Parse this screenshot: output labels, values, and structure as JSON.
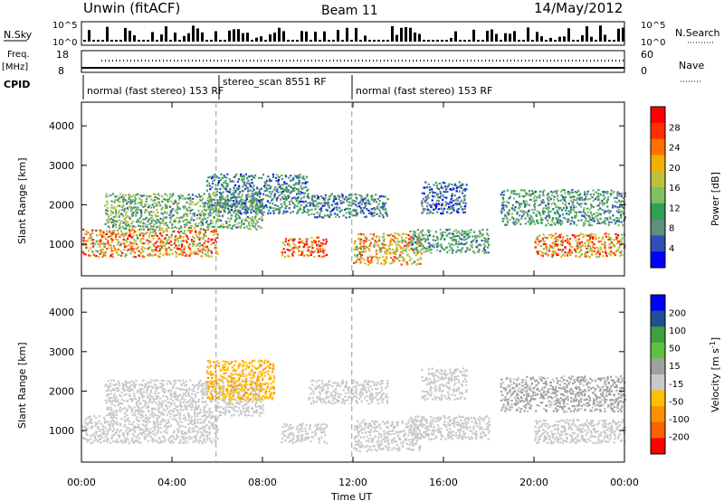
{
  "header": {
    "station": "Unwin (fitACF)",
    "beam": "Beam 11",
    "date": "14/May/2012"
  },
  "ops_panel": {
    "left_labels": {
      "nsky": "N.Sky",
      "freq": "Freq.",
      "mhz": "[MHz]",
      "cpid": "CPID"
    },
    "right_labels": {
      "nsearch": "N.Search",
      "nave": "Nave"
    },
    "noise_ticks_left": [
      "10^5",
      "10^0"
    ],
    "noise_ticks_right": [
      "10^5",
      "10^0"
    ],
    "freq_ticks_left": [
      "18",
      "8"
    ],
    "nave_ticks_right": [
      "60",
      "0"
    ],
    "cpid_segments": [
      {
        "label": "normal (fast stereo) 153 RF",
        "start_hour": 0,
        "end_hour": 5.95
      },
      {
        "label": "stereo_scan 8551 RF",
        "start_hour": 5.95,
        "end_hour": 11.95
      },
      {
        "label": "normal (fast stereo) 153 RF",
        "start_hour": 11.95,
        "end_hour": 24
      }
    ]
  },
  "colors": {
    "power_scale": [
      "#0000ff",
      "#2f4fb8",
      "#5f8f7f",
      "#2fa050",
      "#7fc060",
      "#c0c040",
      "#f0b000",
      "#ff7000",
      "#ff3000",
      "#ff0000"
    ],
    "velocity_scale": [
      "#ff0000",
      "#ff6000",
      "#ff9000",
      "#ffc000",
      "#c8c8c8",
      "#a0a0a0",
      "#60c040",
      "#40a040",
      "#205090",
      "#0000ff"
    ],
    "scatter_gray": "#c8c8c8"
  },
  "chart_data": [
    {
      "type": "heatmap",
      "title": "Power",
      "xlabel": "Time UT",
      "ylabel": "Slant Range [km]",
      "xlim_hours": [
        0,
        24
      ],
      "ylim_km": [
        200,
        4600
      ],
      "x_tick_labels": [
        "00:00",
        "04:00",
        "08:00",
        "12:00",
        "16:00",
        "20:00",
        "00:00"
      ],
      "y_tick_labels": [
        "1000",
        "2000",
        "3000",
        "4000"
      ],
      "colorbar": {
        "label": "Power [dB]",
        "min": 0,
        "max": 32,
        "tick_labels": [
          "4",
          "8",
          "12",
          "16",
          "20",
          "24",
          "28"
        ]
      },
      "echo_regions": [
        {
          "t0": 0.0,
          "t1": 6.0,
          "r0": 700,
          "r1": 1400,
          "value": 22
        },
        {
          "t0": 1.0,
          "t1": 8.0,
          "r0": 1400,
          "r1": 2300,
          "value": 12
        },
        {
          "t0": 5.5,
          "t1": 10.0,
          "r0": 1800,
          "r1": 2800,
          "value": 8
        },
        {
          "t0": 8.8,
          "t1": 10.8,
          "r0": 700,
          "r1": 1200,
          "value": 26
        },
        {
          "t0": 10.0,
          "t1": 13.5,
          "r0": 1700,
          "r1": 2300,
          "value": 8
        },
        {
          "t0": 12.0,
          "t1": 15.0,
          "r0": 500,
          "r1": 1300,
          "value": 20
        },
        {
          "t0": 14.5,
          "t1": 18.0,
          "r0": 800,
          "r1": 1400,
          "value": 10
        },
        {
          "t0": 15.0,
          "t1": 17.0,
          "r0": 1800,
          "r1": 2600,
          "value": 6
        },
        {
          "t0": 18.5,
          "t1": 24.0,
          "r0": 1500,
          "r1": 2400,
          "value": 10
        },
        {
          "t0": 20.0,
          "t1": 24.0,
          "r0": 700,
          "r1": 1300,
          "value": 22
        }
      ]
    },
    {
      "type": "heatmap",
      "title": "Velocity",
      "xlabel": "Time UT",
      "ylabel": "Slant Range [km]",
      "xlim_hours": [
        0,
        24
      ],
      "ylim_km": [
        200,
        4600
      ],
      "x_tick_labels": [
        "00:00",
        "04:00",
        "08:00",
        "12:00",
        "16:00",
        "20:00",
        "00:00"
      ],
      "y_tick_labels": [
        "1000",
        "2000",
        "3000",
        "4000"
      ],
      "colorbar": {
        "label": "Velocity [m s^-1]",
        "tick_labels": [
          "200",
          "100",
          "50",
          "15",
          "-15",
          "-50",
          "-100",
          "-200"
        ]
      },
      "echo_regions": [
        {
          "t0": 0.0,
          "t1": 6.0,
          "r0": 700,
          "r1": 1400,
          "value": -5
        },
        {
          "t0": 1.0,
          "t1": 8.0,
          "r0": 1400,
          "r1": 2300,
          "value": 5
        },
        {
          "t0": 5.5,
          "t1": 8.5,
          "r0": 1800,
          "r1": 2800,
          "value": -80
        },
        {
          "t0": 8.8,
          "t1": 10.8,
          "r0": 700,
          "r1": 1200,
          "value": -5
        },
        {
          "t0": 10.0,
          "t1": 13.5,
          "r0": 1700,
          "r1": 2300,
          "value": 0
        },
        {
          "t0": 12.0,
          "t1": 15.0,
          "r0": 500,
          "r1": 1300,
          "value": -10
        },
        {
          "t0": 14.5,
          "t1": 18.0,
          "r0": 800,
          "r1": 1400,
          "value": 5
        },
        {
          "t0": 15.0,
          "t1": 17.0,
          "r0": 1800,
          "r1": 2600,
          "value": 0
        },
        {
          "t0": 18.5,
          "t1": 24.0,
          "r0": 1500,
          "r1": 2400,
          "value": 20
        },
        {
          "t0": 20.0,
          "t1": 24.0,
          "r0": 700,
          "r1": 1300,
          "value": -5
        }
      ]
    }
  ]
}
